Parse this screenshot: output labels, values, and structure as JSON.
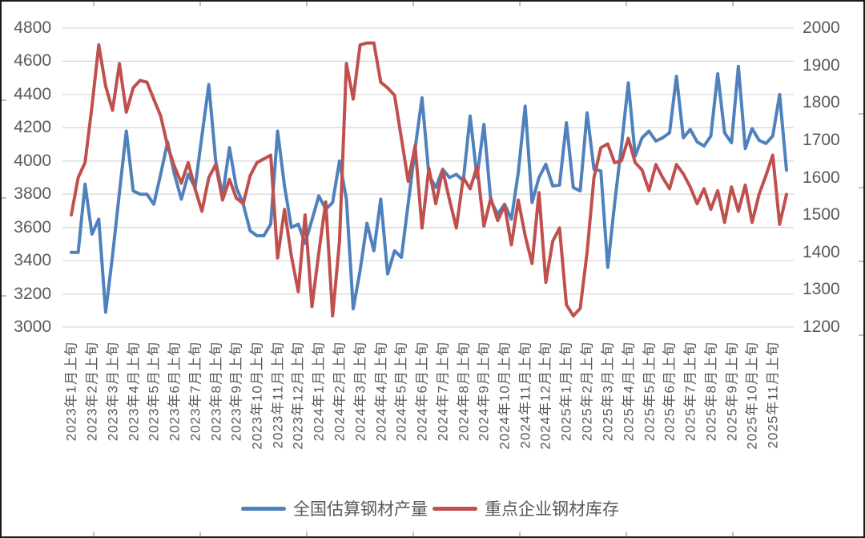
{
  "chart_data": {
    "type": "line",
    "title": "",
    "grid": true,
    "legend_position": "bottom",
    "colors": {
      "series1": "#4F81BD",
      "series2": "#C0504D",
      "gridline": "#D9D9D9",
      "axis_text": "#595959",
      "frame": "#1a1a1a",
      "frame_tick": "#808080"
    },
    "left_axis": {
      "min": 3000,
      "max": 4800,
      "step": 200,
      "ticks": [
        4800,
        4600,
        4400,
        4200,
        4000,
        3800,
        3600,
        3400,
        3200,
        3000
      ]
    },
    "right_axis": {
      "min": 1200,
      "max": 2000,
      "step": 100,
      "ticks": [
        2000,
        1900,
        1800,
        1700,
        1600,
        1500,
        1400,
        1300,
        1200
      ]
    },
    "x_points_per_label": 3,
    "x_tick_labels": [
      "2023年1月上旬",
      "2023年2月上旬",
      "2023年3月上旬",
      "2023年4月上旬",
      "2023年5月上旬",
      "2023年6月上旬",
      "2023年7月上旬",
      "2023年8月上旬",
      "2023年9月上旬",
      "2023年10月上旬",
      "2023年11月上旬",
      "2023年12月上旬",
      "2024年1月上旬",
      "2024年2月上旬",
      "2024年3月上旬",
      "2024年4月上旬",
      "2024年5月上旬",
      "2024年6月上旬",
      "2024年7月上旬",
      "2024年8月上旬",
      "2024年9月上旬",
      "2024年10月上旬",
      "2024年11月上旬",
      "2024年12月上旬",
      "2025年1月上旬",
      "2025年2月上旬",
      "2025年3月上旬",
      "2025年4月上旬",
      "2025年5月上旬",
      "2025年6月上旬",
      "2025年7月上旬",
      "2025年8月上旬",
      "2025年9月上旬",
      "2025年10月上旬",
      "2025年11月上旬"
    ],
    "series": [
      {
        "name": "全国估算钢材产量",
        "axis": "left",
        "color": "#4F81BD",
        "values": [
          3450,
          3450,
          3860,
          3560,
          3650,
          3090,
          3430,
          3810,
          4180,
          3820,
          3800,
          3800,
          3740,
          3920,
          4115,
          3920,
          3770,
          3920,
          3840,
          4150,
          4460,
          4000,
          3790,
          4080,
          3840,
          3740,
          3580,
          3550,
          3550,
          3620,
          4180,
          3850,
          3600,
          3620,
          3505,
          3645,
          3790,
          3710,
          3750,
          4000,
          3770,
          3110,
          3340,
          3625,
          3460,
          3770,
          3320,
          3460,
          3420,
          3745,
          4075,
          4380,
          3915,
          3840,
          3950,
          3900,
          3920,
          3880,
          4270,
          3900,
          4220,
          3760,
          3680,
          3740,
          3650,
          3930,
          4330,
          3750,
          3900,
          3980,
          3850,
          3855,
          4230,
          3840,
          3820,
          4290,
          3950,
          3940,
          3360,
          3740,
          4090,
          4470,
          4030,
          4140,
          4180,
          4120,
          4140,
          4170,
          4510,
          4140,
          4190,
          4115,
          4090,
          4150,
          4525,
          4170,
          4110,
          4570,
          4075,
          4195,
          4125,
          4105,
          4150,
          4400,
          3945
        ]
      },
      {
        "name": "重点企业钢材库存",
        "axis": "right",
        "color": "#C0504D",
        "values": [
          1500,
          1600,
          1640,
          1790,
          1955,
          1845,
          1780,
          1905,
          1775,
          1840,
          1860,
          1855,
          1810,
          1765,
          1685,
          1630,
          1585,
          1640,
          1570,
          1510,
          1600,
          1635,
          1540,
          1595,
          1545,
          1530,
          1605,
          1640,
          1650,
          1660,
          1385,
          1515,
          1390,
          1295,
          1500,
          1255,
          1400,
          1535,
          1230,
          1430,
          1905,
          1810,
          1955,
          1960,
          1960,
          1855,
          1840,
          1820,
          1705,
          1590,
          1685,
          1465,
          1625,
          1530,
          1620,
          1540,
          1465,
          1600,
          1570,
          1630,
          1470,
          1545,
          1485,
          1525,
          1420,
          1540,
          1445,
          1370,
          1560,
          1320,
          1430,
          1465,
          1260,
          1230,
          1250,
          1400,
          1600,
          1680,
          1690,
          1640,
          1645,
          1705,
          1640,
          1620,
          1565,
          1635,
          1600,
          1570,
          1635,
          1610,
          1575,
          1530,
          1570,
          1515,
          1565,
          1480,
          1575,
          1510,
          1580,
          1480,
          1555,
          1605,
          1660,
          1475,
          1555
        ]
      }
    ]
  },
  "legend": {
    "item1": "全国估算钢材产量",
    "item2": "重点企业钢材库存"
  }
}
